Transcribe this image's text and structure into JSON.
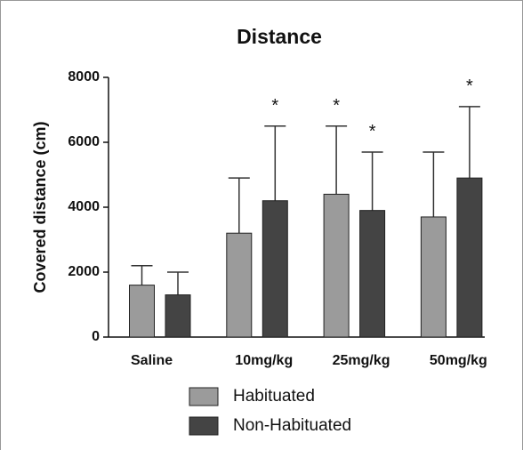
{
  "chart_data": {
    "type": "bar",
    "title": "Distance",
    "y_label": "Covered distance (cm)",
    "categories": [
      "Saline",
      "10mg/kg",
      "25mg/kg",
      "50mg/kg"
    ],
    "series": [
      {
        "name": "Habituated",
        "color": "#9b9b9b",
        "values": [
          1600,
          3200,
          4400,
          3700
        ],
        "errors": [
          600,
          1700,
          2100,
          2000
        ],
        "annotations": [
          null,
          null,
          "*",
          null
        ]
      },
      {
        "name": "Non-Habituated",
        "color": "#444444",
        "values": [
          1300,
          4200,
          3900,
          4900
        ],
        "errors": [
          700,
          2300,
          1800,
          2200
        ],
        "annotations": [
          null,
          "*",
          "*",
          "*"
        ]
      }
    ],
    "ylim": [
      0,
      8000
    ],
    "yticks": [
      0,
      2000,
      4000,
      6000,
      8000
    ],
    "legend": "bottom"
  }
}
